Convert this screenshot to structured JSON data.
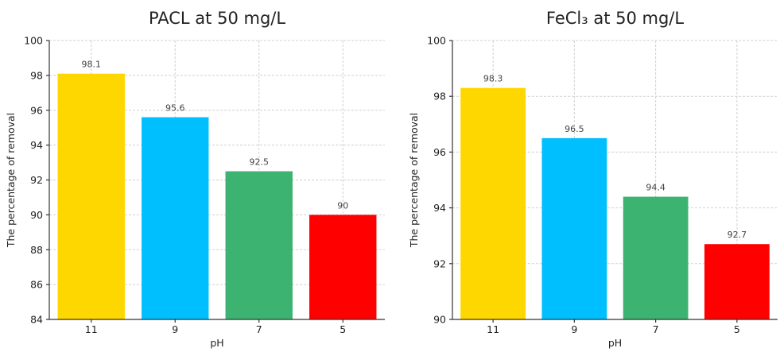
{
  "chart_data": [
    {
      "type": "bar",
      "title": "PACL at 50 mg/L",
      "xlabel": "pH",
      "ylabel": "The percentage of removal",
      "categories": [
        "11",
        "9",
        "7",
        "5"
      ],
      "values": [
        98.1,
        95.6,
        92.5,
        90
      ],
      "data_labels": [
        "98.1",
        "95.6",
        "92.5",
        "90"
      ],
      "colors": [
        "#FFD700",
        "#00BFFF",
        "#3CB371",
        "#FF0000"
      ],
      "ylim": [
        84,
        100
      ],
      "yticks": [
        84,
        86,
        88,
        90,
        92,
        94,
        96,
        98,
        100
      ],
      "grid": true
    },
    {
      "type": "bar",
      "title": "FeCl₃ at 50 mg/L",
      "xlabel": "pH",
      "ylabel": "The percentage of removal",
      "categories": [
        "11",
        "9",
        "7",
        "5"
      ],
      "values": [
        98.3,
        96.5,
        94.4,
        92.7
      ],
      "data_labels": [
        "98.3",
        "96.5",
        "94.4",
        "92.7"
      ],
      "colors": [
        "#FFD700",
        "#00BFFF",
        "#3CB371",
        "#FF0000"
      ],
      "ylim": [
        90,
        100
      ],
      "yticks": [
        90,
        92,
        94,
        96,
        98,
        100
      ],
      "grid": true
    }
  ]
}
